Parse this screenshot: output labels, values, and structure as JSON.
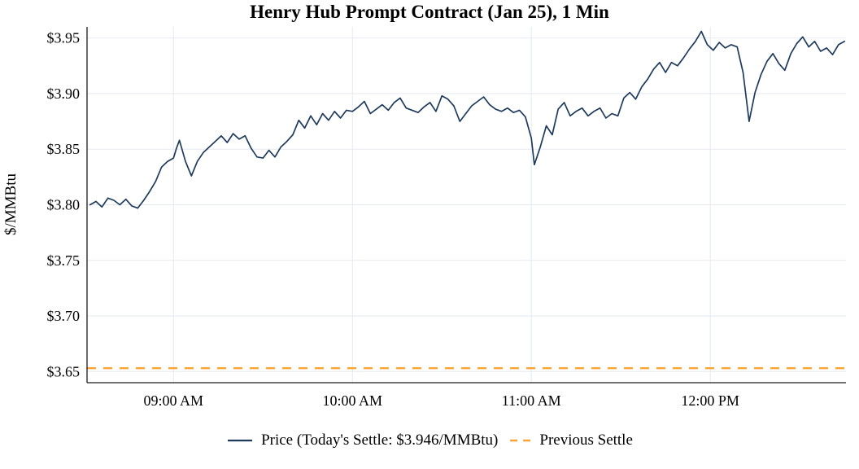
{
  "figure": {
    "title": "Henry Hub Prompt Contract (Jan 25), 1 Min"
  },
  "legend": {
    "price_label": "Price (Today's Settle: $3.946/MMBtu)",
    "previous_settle_label": "Previous Settle"
  },
  "colors": {
    "price_line": "#1f3b5c",
    "previous_settle_line": "#ffa333",
    "grid": "#e5e9ef",
    "axis": "#1a1a1a",
    "text": "#000000"
  },
  "chart_data": {
    "type": "line",
    "title": "Henry Hub Prompt Contract (Jan 25), 1 Min",
    "xlabel": "",
    "ylabel": "$/MMBtu",
    "x_ticks": [
      "09:00 AM",
      "10:00 AM",
      "11:00 AM",
      "12:00 PM"
    ],
    "x_tick_minutes": [
      540,
      600,
      660,
      720
    ],
    "y_ticks": [
      "$3.95",
      "$3.90",
      "$3.85",
      "$3.80",
      "$3.75",
      "$3.70",
      "$3.65"
    ],
    "y_tick_values": [
      3.95,
      3.9,
      3.85,
      3.8,
      3.75,
      3.7,
      3.65
    ],
    "xlim_minutes": [
      511,
      765.5
    ],
    "ylim": [
      3.64,
      3.96
    ],
    "grid": true,
    "legend_position": "bottom",
    "previous_settle": 3.653,
    "todays_settle": 3.946,
    "series": [
      {
        "name": "Price (Today's Settle: $3.946/MMBtu)",
        "style": "solid",
        "points": [
          [
            512,
            3.8
          ],
          [
            514,
            3.803
          ],
          [
            516,
            3.798
          ],
          [
            518,
            3.806
          ],
          [
            520,
            3.804
          ],
          [
            522,
            3.8
          ],
          [
            524,
            3.805
          ],
          [
            526,
            3.799
          ],
          [
            528,
            3.797
          ],
          [
            530,
            3.804
          ],
          [
            532,
            3.812
          ],
          [
            534,
            3.821
          ],
          [
            536,
            3.834
          ],
          [
            538,
            3.839
          ],
          [
            540,
            3.842
          ],
          [
            541,
            3.851
          ],
          [
            542,
            3.858
          ],
          [
            544,
            3.839
          ],
          [
            546,
            3.826
          ],
          [
            548,
            3.839
          ],
          [
            550,
            3.847
          ],
          [
            552,
            3.852
          ],
          [
            554,
            3.857
          ],
          [
            556,
            3.862
          ],
          [
            558,
            3.856
          ],
          [
            560,
            3.864
          ],
          [
            562,
            3.859
          ],
          [
            564,
            3.862
          ],
          [
            566,
            3.851
          ],
          [
            568,
            3.843
          ],
          [
            570,
            3.842
          ],
          [
            572,
            3.849
          ],
          [
            574,
            3.843
          ],
          [
            576,
            3.852
          ],
          [
            578,
            3.857
          ],
          [
            580,
            3.863
          ],
          [
            582,
            3.876
          ],
          [
            584,
            3.869
          ],
          [
            586,
            3.88
          ],
          [
            588,
            3.872
          ],
          [
            590,
            3.882
          ],
          [
            592,
            3.876
          ],
          [
            594,
            3.884
          ],
          [
            596,
            3.878
          ],
          [
            598,
            3.885
          ],
          [
            600,
            3.884
          ],
          [
            602,
            3.888
          ],
          [
            604,
            3.893
          ],
          [
            606,
            3.882
          ],
          [
            608,
            3.886
          ],
          [
            610,
            3.89
          ],
          [
            612,
            3.885
          ],
          [
            614,
            3.892
          ],
          [
            616,
            3.896
          ],
          [
            618,
            3.887
          ],
          [
            620,
            3.885
          ],
          [
            622,
            3.883
          ],
          [
            624,
            3.888
          ],
          [
            626,
            3.892
          ],
          [
            628,
            3.884
          ],
          [
            630,
            3.898
          ],
          [
            632,
            3.895
          ],
          [
            634,
            3.889
          ],
          [
            636,
            3.875
          ],
          [
            638,
            3.882
          ],
          [
            640,
            3.889
          ],
          [
            642,
            3.893
          ],
          [
            644,
            3.897
          ],
          [
            646,
            3.89
          ],
          [
            648,
            3.886
          ],
          [
            650,
            3.884
          ],
          [
            652,
            3.887
          ],
          [
            654,
            3.883
          ],
          [
            656,
            3.885
          ],
          [
            658,
            3.879
          ],
          [
            660,
            3.86
          ],
          [
            661,
            3.836
          ],
          [
            663,
            3.852
          ],
          [
            665,
            3.871
          ],
          [
            667,
            3.863
          ],
          [
            669,
            3.886
          ],
          [
            671,
            3.892
          ],
          [
            673,
            3.88
          ],
          [
            675,
            3.884
          ],
          [
            677,
            3.887
          ],
          [
            679,
            3.88
          ],
          [
            681,
            3.884
          ],
          [
            683,
            3.887
          ],
          [
            685,
            3.878
          ],
          [
            687,
            3.882
          ],
          [
            689,
            3.88
          ],
          [
            691,
            3.896
          ],
          [
            693,
            3.901
          ],
          [
            695,
            3.895
          ],
          [
            697,
            3.906
          ],
          [
            699,
            3.913
          ],
          [
            701,
            3.922
          ],
          [
            703,
            3.928
          ],
          [
            705,
            3.919
          ],
          [
            707,
            3.928
          ],
          [
            709,
            3.925
          ],
          [
            711,
            3.932
          ],
          [
            713,
            3.94
          ],
          [
            715,
            3.947
          ],
          [
            717,
            3.956
          ],
          [
            719,
            3.944
          ],
          [
            721,
            3.939
          ],
          [
            723,
            3.946
          ],
          [
            725,
            3.941
          ],
          [
            727,
            3.944
          ],
          [
            729,
            3.942
          ],
          [
            731,
            3.919
          ],
          [
            733,
            3.875
          ],
          [
            735,
            3.901
          ],
          [
            737,
            3.917
          ],
          [
            739,
            3.929
          ],
          [
            741,
            3.936
          ],
          [
            743,
            3.927
          ],
          [
            745,
            3.921
          ],
          [
            747,
            3.936
          ],
          [
            749,
            3.945
          ],
          [
            751,
            3.951
          ],
          [
            753,
            3.942
          ],
          [
            755,
            3.947
          ],
          [
            757,
            3.938
          ],
          [
            759,
            3.941
          ],
          [
            761,
            3.935
          ],
          [
            763,
            3.944
          ],
          [
            765,
            3.947
          ]
        ]
      },
      {
        "name": "Previous Settle",
        "style": "dashed",
        "type": "hline",
        "value": 3.653
      }
    ]
  }
}
